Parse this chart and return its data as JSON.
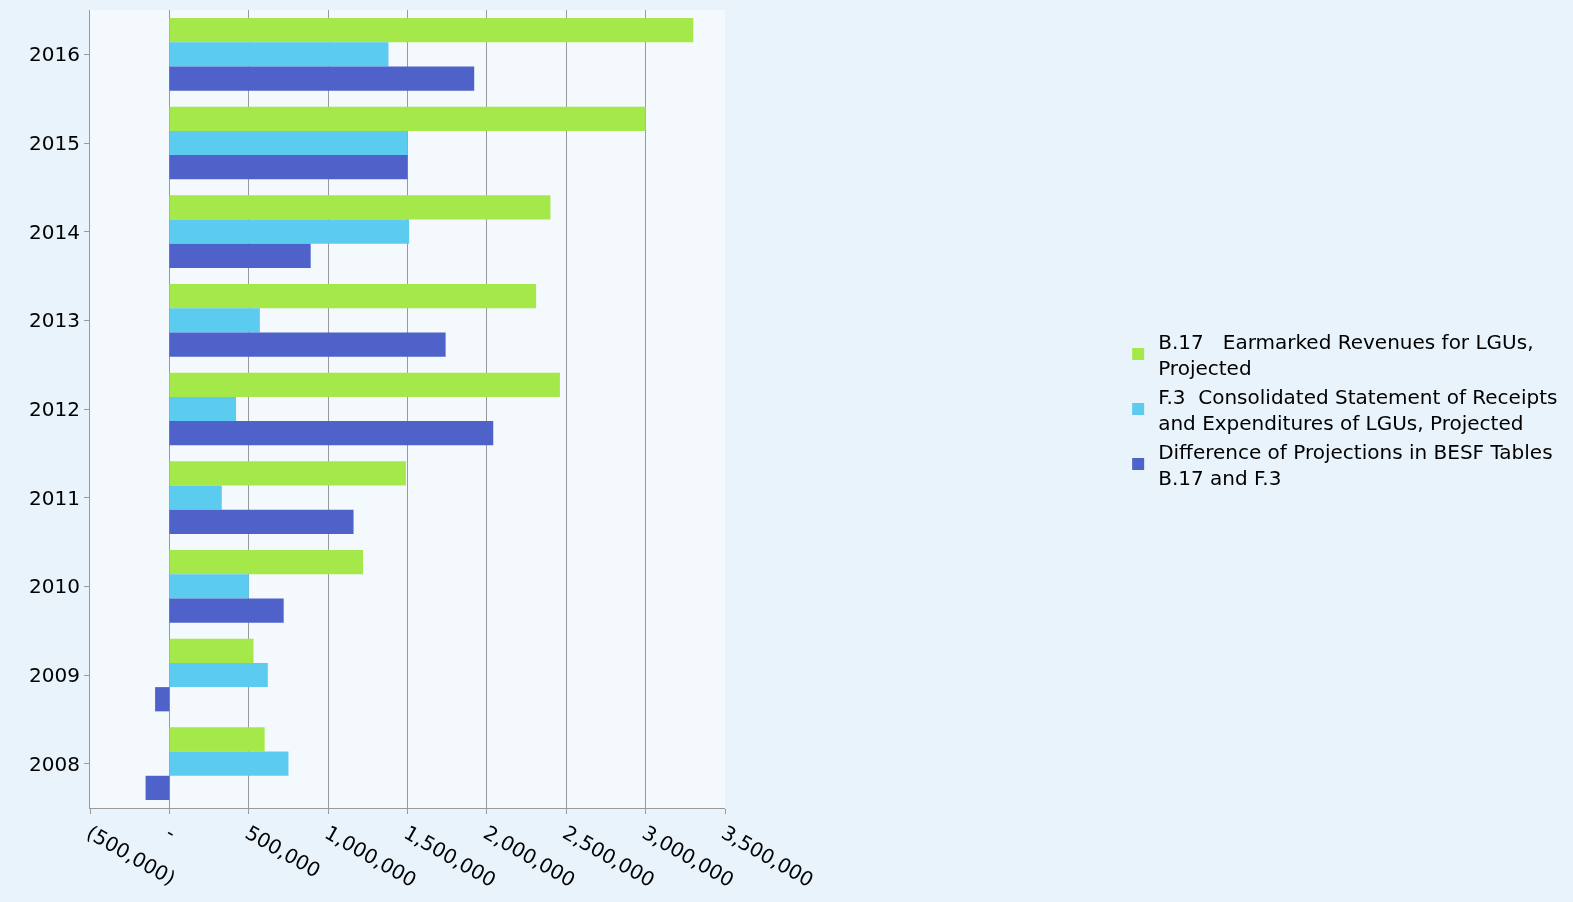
{
  "chart_data": {
    "type": "bar",
    "orientation": "horizontal",
    "categories": [
      "2016",
      "2015",
      "2014",
      "2013",
      "2012",
      "2011",
      "2010",
      "2009",
      "2008"
    ],
    "series": [
      {
        "name": "B.17   Earmarked Revenues for LGUs, Projected",
        "color": "#a5e84a",
        "values": [
          3300000,
          3000000,
          2400000,
          2310000,
          2460000,
          1490000,
          1220000,
          530000,
          600000
        ]
      },
      {
        "name": "F.3  Consolidated Statement of Receipts and Expenditures of LGUs, Projected",
        "color": "#5bcbf0",
        "values": [
          1380000,
          1500000,
          1510000,
          570000,
          420000,
          330000,
          500000,
          620000,
          750000
        ]
      },
      {
        "name": "Difference of Projections in BESF Tables B.17 and F.3",
        "color": "#4f62c9",
        "values": [
          1920000,
          1500000,
          890000,
          1740000,
          2040000,
          1160000,
          720000,
          -90000,
          -150000
        ]
      }
    ],
    "xlim": [
      -500000,
      3500000
    ],
    "xticks": [
      {
        "value": -500000,
        "label": "(500,000)"
      },
      {
        "value": 0,
        "label": "-"
      },
      {
        "value": 500000,
        "label": "500,000"
      },
      {
        "value": 1000000,
        "label": "1,000,000"
      },
      {
        "value": 1500000,
        "label": "1,500,000"
      },
      {
        "value": 2000000,
        "label": "2,000,000"
      },
      {
        "value": 2500000,
        "label": "2,500,000"
      },
      {
        "value": 3000000,
        "label": "3,000,000"
      },
      {
        "value": 3500000,
        "label": "3,500,000"
      }
    ],
    "grid": "x",
    "legend": "right"
  }
}
